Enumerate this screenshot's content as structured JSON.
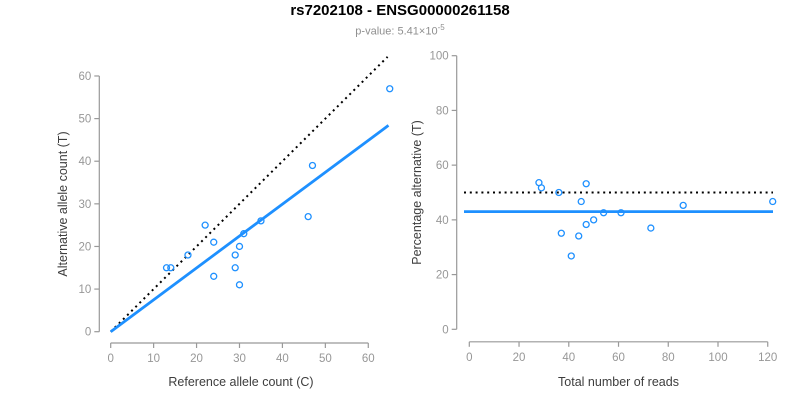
{
  "header": {
    "title": "rs7202108 - ENSG00000261158",
    "subtitle_base": "p-value: 5.41×10",
    "subtitle_exponent": "-5"
  },
  "colors": {
    "accent_blue": "#1E90FF",
    "identity_black": "#000000",
    "axis_gray": "#999999"
  },
  "chart_data": [
    {
      "type": "scatter",
      "title": "",
      "xlabel": "Reference allele count (C)",
      "ylabel": "Alternative allele count (T)",
      "xlim": [
        0,
        65
      ],
      "ylim": [
        0,
        65
      ],
      "xticks": [
        0,
        10,
        20,
        30,
        40,
        50,
        60
      ],
      "yticks": [
        0,
        10,
        20,
        30,
        40,
        50,
        60
      ],
      "grid": false,
      "legend": null,
      "point_color": "#1E90FF",
      "points": [
        [
          13,
          15
        ],
        [
          14,
          15
        ],
        [
          18,
          18
        ],
        [
          22,
          25
        ],
        [
          24,
          13
        ],
        [
          24,
          21
        ],
        [
          29,
          15
        ],
        [
          29,
          18
        ],
        [
          30,
          11
        ],
        [
          30,
          20
        ],
        [
          31,
          23
        ],
        [
          35,
          26
        ],
        [
          46,
          27
        ],
        [
          47,
          39
        ],
        [
          65,
          57
        ]
      ],
      "lines": [
        {
          "name": "identity-line",
          "style": "dotted",
          "color": "#000000",
          "x1": 0,
          "y1": 0,
          "x2": 64.5,
          "y2": 64.5
        },
        {
          "name": "regression-line",
          "style": "solid",
          "color": "#1E90FF",
          "x1": 0,
          "y1": 0,
          "x2": 64.7,
          "y2": 48.4
        }
      ]
    },
    {
      "type": "scatter",
      "title": "",
      "xlabel": "Total number of reads",
      "ylabel": "Percentage alternative (T)",
      "xlim": [
        0,
        122
      ],
      "ylim": [
        0,
        100
      ],
      "xticks": [
        0,
        20,
        40,
        60,
        80,
        100,
        120
      ],
      "yticks": [
        0,
        20,
        40,
        60,
        80,
        100
      ],
      "grid": false,
      "legend": null,
      "point_color": "#1E90FF",
      "points": [
        [
          28,
          53.6
        ],
        [
          29,
          51.7
        ],
        [
          36,
          50.0
        ],
        [
          37,
          35.1
        ],
        [
          41,
          26.8
        ],
        [
          44,
          34.1
        ],
        [
          45,
          46.7
        ],
        [
          47,
          38.3
        ],
        [
          47,
          53.2
        ],
        [
          50,
          40.0
        ],
        [
          54,
          42.6
        ],
        [
          61,
          42.6
        ],
        [
          73,
          37.0
        ],
        [
          86,
          45.3
        ],
        [
          122,
          46.7
        ]
      ],
      "lines": [
        {
          "name": "expected-50-line",
          "style": "dotted",
          "color": "#000000",
          "y": 50
        },
        {
          "name": "overall-percentage-line",
          "style": "solid",
          "color": "#1E90FF",
          "y": 43
        }
      ]
    }
  ]
}
